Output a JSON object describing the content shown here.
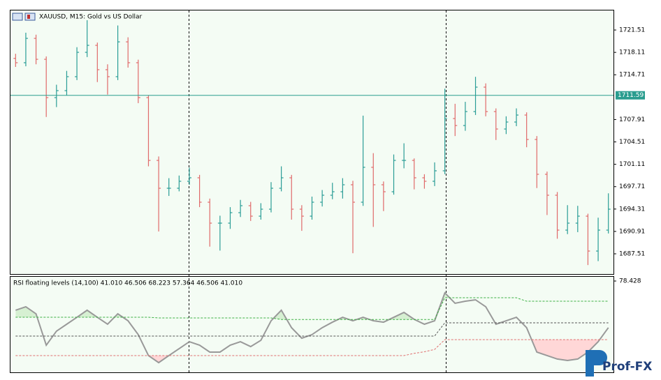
{
  "chart_data": [
    {
      "type": "ohlc",
      "title": "XAUUSD, M15:  Gold vs US Dollar",
      "open": [
        1717.2,
        1716.54,
        1720.24,
        1717.06,
        1711.24,
        1712.3,
        1714.42,
        1718.12,
        1719.18,
        1715.48,
        1714.42,
        1719.71,
        1716.54,
        1711.24,
        1701.7,
        1697.47,
        1697.47,
        1698.53,
        1699.06,
        1695.35,
        1692.17,
        1692.17,
        1693.76,
        1694.82,
        1693.23,
        1694.29,
        1697.47,
        1699.06,
        1694.29,
        1693.23,
        1695.35,
        1696.41,
        1696.94,
        1698.0,
        1695.35,
        1700.65,
        1698.0,
        1696.94,
        1701.7,
        1701.7,
        1699.06,
        1698.53,
        1700.12,
        1708.06,
        1707.0,
        1709.12,
        1712.83,
        1709.12,
        1706.47,
        1707.53,
        1708.59,
        1704.88,
        1699.59,
        1696.41,
        1691.11,
        1692.17,
        1693.23,
        1687.93,
        1691.11
      ],
      "high": [
        1717.9,
        1721.1,
        1720.8,
        1717.5,
        1713.2,
        1715.3,
        1718.9,
        1723.0,
        1719.6,
        1716.3,
        1722.2,
        1720.4,
        1717.0,
        1711.6,
        1702.3,
        1699.0,
        1699.4,
        1700.6,
        1699.5,
        1695.9,
        1693.3,
        1694.6,
        1695.7,
        1695.4,
        1695.2,
        1698.4,
        1700.8,
        1699.5,
        1694.9,
        1696.2,
        1697.2,
        1698.3,
        1699.0,
        1698.6,
        1708.5,
        1702.8,
        1698.5,
        1702.6,
        1704.3,
        1702.0,
        1699.6,
        1701.4,
        1712.6,
        1710.3,
        1710.6,
        1714.4,
        1713.4,
        1709.6,
        1708.4,
        1709.6,
        1709.0,
        1705.4,
        1700.0,
        1696.9,
        1694.9,
        1694.8,
        1693.6,
        1693.0,
        1696.7
      ],
      "low": [
        1715.9,
        1716.0,
        1716.3,
        1708.3,
        1709.8,
        1711.6,
        1713.9,
        1717.4,
        1713.6,
        1711.7,
        1713.9,
        1715.8,
        1710.4,
        1700.8,
        1690.9,
        1696.3,
        1697.0,
        1698.0,
        1694.6,
        1688.6,
        1688.0,
        1691.3,
        1693.1,
        1692.5,
        1692.7,
        1693.8,
        1697.0,
        1692.7,
        1691.0,
        1692.7,
        1694.7,
        1695.8,
        1695.9,
        1687.6,
        1694.8,
        1691.6,
        1694.0,
        1696.5,
        1700.5,
        1697.3,
        1697.4,
        1697.8,
        1699.6,
        1705.4,
        1706.2,
        1708.6,
        1708.4,
        1704.8,
        1705.7,
        1706.9,
        1703.7,
        1697.5,
        1693.4,
        1689.8,
        1690.5,
        1690.8,
        1685.8,
        1686.4,
        1690.6
      ],
      "close": [
        1716.54,
        1720.24,
        1717.06,
        1711.24,
        1712.3,
        1714.42,
        1718.12,
        1719.18,
        1715.48,
        1714.42,
        1719.71,
        1716.54,
        1711.24,
        1701.7,
        1697.47,
        1697.47,
        1698.53,
        1699.06,
        1695.35,
        1692.17,
        1692.17,
        1693.76,
        1694.82,
        1693.23,
        1694.29,
        1697.47,
        1699.06,
        1694.29,
        1693.23,
        1695.35,
        1696.41,
        1696.94,
        1698.0,
        1695.35,
        1700.65,
        1698.0,
        1696.94,
        1701.7,
        1701.7,
        1699.06,
        1698.53,
        1700.12,
        1708.06,
        1707.0,
        1709.12,
        1712.83,
        1709.12,
        1706.47,
        1707.53,
        1708.59,
        1704.88,
        1699.59,
        1696.41,
        1691.11,
        1692.17,
        1693.23,
        1687.93,
        1691.11,
        1694.29
      ],
      "up_color": "#2a9d96",
      "down_color": "#e06a6a",
      "current_price": 1711.59,
      "current_color": "#2a9d8f",
      "ylim": [
        1684.44,
        1724.48
      ],
      "yticks": [
        1721.51,
        1718.11,
        1714.71,
        1707.91,
        1704.51,
        1701.11,
        1697.71,
        1694.31,
        1690.91,
        1687.51
      ]
    },
    {
      "type": "line",
      "title": "RSI floating levels (14,100) 41.010 46.506 68.223 57.364 46.506 41.010",
      "ylim": [
        20.9,
        81.1
      ],
      "yticks": [
        78.428
      ],
      "series": [
        {
          "color": "#999999",
          "width": 2,
          "values": [
            59.9,
            62.1,
            57.6,
            37.7,
            46.6,
            51.0,
            55.4,
            59.9,
            55.4,
            51.0,
            57.6,
            53.2,
            44.4,
            31.1,
            26.6,
            31.1,
            35.5,
            39.9,
            37.7,
            33.3,
            33.3,
            37.7,
            39.9,
            36.8,
            40.8,
            53.2,
            59.9,
            48.8,
            42.1,
            44.4,
            48.8,
            52.3,
            55.4,
            53.2,
            55.4,
            53.2,
            52.3,
            55.4,
            58.5,
            54.1,
            51.0,
            53.2,
            70.9,
            64.3,
            65.6,
            66.5,
            62.1,
            51.0,
            53.2,
            55.4,
            48.8,
            33.3,
            31.1,
            28.9,
            28.0,
            28.9,
            33.3,
            39.9,
            48.8
          ]
        },
        {
          "color": "#3cb043",
          "dash": true,
          "fill": "#d6f0d2",
          "fill_side": "above",
          "values": [
            55.4,
            55.4,
            55.4,
            55.4,
            55.4,
            55.4,
            55.4,
            55.4,
            55.4,
            55.4,
            55.4,
            55.4,
            55.4,
            55.4,
            55.0,
            55.0,
            55.0,
            55.0,
            55.0,
            55.0,
            55.0,
            55.0,
            55.0,
            55.0,
            55.0,
            55.0,
            54.0,
            54.0,
            54.0,
            54.0,
            54.0,
            54.0,
            54.0,
            54.0,
            54.0,
            54.0,
            54.0,
            54.0,
            54.0,
            54.0,
            54.0,
            54.0,
            67.8,
            67.8,
            67.8,
            67.8,
            67.8,
            67.8,
            67.8,
            67.8,
            65.6,
            65.6,
            65.6,
            65.6,
            65.6,
            65.6,
            65.6,
            65.6,
            65.6
          ]
        },
        {
          "color": "#555555",
          "dash": true,
          "values": [
            43.5,
            43.5,
            43.5,
            43.5,
            43.5,
            43.5,
            43.5,
            43.5,
            43.5,
            43.5,
            43.5,
            43.5,
            43.5,
            43.5,
            43.5,
            43.5,
            43.5,
            43.5,
            43.5,
            43.5,
            43.5,
            43.5,
            43.5,
            43.5,
            43.5,
            43.5,
            43.5,
            43.5,
            43.5,
            43.5,
            43.5,
            43.5,
            43.5,
            43.5,
            43.5,
            43.5,
            43.5,
            43.5,
            43.5,
            43.5,
            43.5,
            43.5,
            51.9,
            51.9,
            51.9,
            51.9,
            51.9,
            51.9,
            51.9,
            51.9,
            51.9,
            51.9,
            51.9,
            51.9,
            51.9,
            51.9,
            51.9,
            51.9,
            51.9
          ]
        },
        {
          "color": "#e07070",
          "dash": true,
          "fill": "#ffd7d7",
          "fill_side": "below",
          "values": [
            31.1,
            31.1,
            31.1,
            31.1,
            31.1,
            31.1,
            31.1,
            31.1,
            31.1,
            31.1,
            31.1,
            31.1,
            31.1,
            31.1,
            31.1,
            31.1,
            31.1,
            31.1,
            31.1,
            31.1,
            31.1,
            31.1,
            31.1,
            31.1,
            31.1,
            31.1,
            31.1,
            31.1,
            31.1,
            31.1,
            31.1,
            31.1,
            31.1,
            31.1,
            31.1,
            31.1,
            31.1,
            31.1,
            31.1,
            32.5,
            33.5,
            35.0,
            41.2,
            41.2,
            41.2,
            41.2,
            41.2,
            41.2,
            41.2,
            41.2,
            41.2,
            41.2,
            41.2,
            41.2,
            41.2,
            41.2,
            41.2,
            41.2,
            41.2
          ]
        }
      ]
    }
  ],
  "watermark": "Prof-FX"
}
